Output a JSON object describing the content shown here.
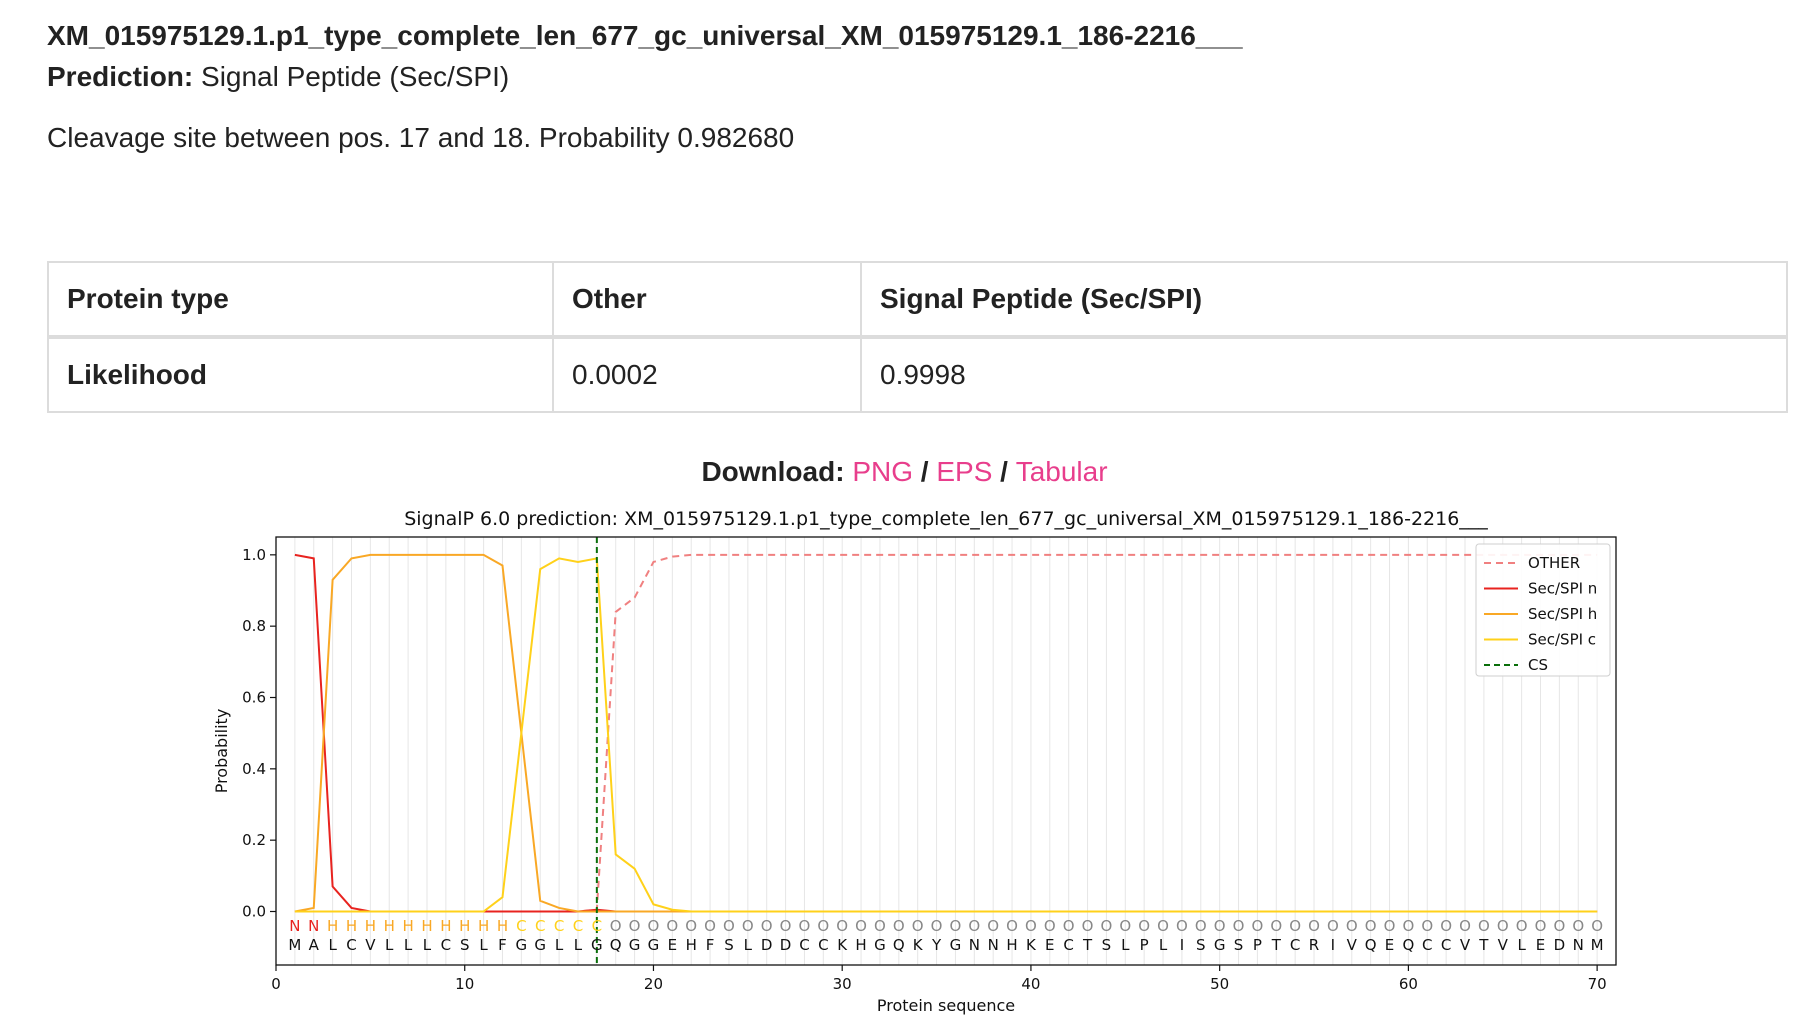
{
  "header": {
    "sequence_name": "XM_015975129.1.p1_type_complete_len_677_gc_universal_XM_015975129.1_186-2216___",
    "prediction_label": "Prediction:",
    "prediction_value": "Signal Peptide (Sec/SPI)",
    "cleavage_text": "Cleavage site between pos. 17 and 18. Probability 0.982680"
  },
  "table": {
    "row1": [
      "Protein type",
      "Other",
      "Signal Peptide (Sec/SPI)"
    ],
    "row2": [
      "Likelihood",
      "0.0002",
      "0.9998"
    ]
  },
  "download": {
    "label": "Download:",
    "links": [
      "PNG",
      "EPS",
      "Tabular"
    ],
    "separator": "/"
  },
  "chart_data": {
    "type": "line",
    "title": "SignalP 6.0 prediction: XM_015975129.1.p1_type_complete_len_677_gc_universal_XM_015975129.1_186-2216___",
    "xlabel": "Protein sequence",
    "ylabel": "Probability",
    "xlim": [
      0,
      71
    ],
    "ylim": [
      -0.15,
      1.05
    ],
    "xticks": [
      0,
      10,
      20,
      30,
      40,
      50,
      60,
      70
    ],
    "yticks": [
      0.0,
      0.2,
      0.4,
      0.6,
      0.8,
      1.0
    ],
    "ytick_labels": [
      "0.0",
      "0.2",
      "0.4",
      "0.6",
      "0.8",
      "1.0"
    ],
    "legend_position": "top-right",
    "sequence": "MALCVLLLCSLFGGLLGQGGEHFSLDDCCKHGQKYGNNHKECTSLPLISGSPTCRIVQEQCCVTVLEDNM",
    "labels": "NNHHHHHHHHHHCCCCCOOOOOOOOOOOOOOOOOOOOOOOOOOOOOOOOOOOOOOOOOOOOOOOOOOOOO",
    "label_colors": {
      "N": "#e8231f",
      "H": "#f9a825",
      "C": "#ffd11a",
      "O": "#888888"
    },
    "x": [
      1,
      2,
      3,
      4,
      5,
      6,
      7,
      8,
      9,
      10,
      11,
      12,
      13,
      14,
      15,
      16,
      17,
      18,
      19,
      20,
      21,
      22,
      23,
      24,
      25,
      26,
      27,
      28,
      29,
      30,
      31,
      32,
      33,
      34,
      35,
      36,
      37,
      38,
      39,
      40,
      41,
      42,
      43,
      44,
      45,
      46,
      47,
      48,
      49,
      50,
      51,
      52,
      53,
      54,
      55,
      56,
      57,
      58,
      59,
      60,
      61,
      62,
      63,
      64,
      65,
      66,
      67,
      68,
      69,
      70
    ],
    "series": [
      {
        "name": "OTHER",
        "color": "#f08080",
        "dash": true,
        "values": [
          0,
          0,
          0,
          0,
          0,
          0,
          0,
          0,
          0,
          0,
          0,
          0,
          0,
          0,
          0,
          0,
          0.005,
          0.84,
          0.88,
          0.98,
          0.995,
          1,
          1,
          1,
          1,
          1,
          1,
          1,
          1,
          1,
          1,
          1,
          1,
          1,
          1,
          1,
          1,
          1,
          1,
          1,
          1,
          1,
          1,
          1,
          1,
          1,
          1,
          1,
          1,
          1,
          1,
          1,
          1,
          1,
          1,
          1,
          1,
          1,
          1,
          1,
          1,
          1,
          1,
          1,
          1,
          1,
          1,
          1,
          1,
          1
        ]
      },
      {
        "name": "Sec/SPI n",
        "color": "#e8231f",
        "dash": false,
        "values": [
          1.0,
          0.99,
          0.07,
          0.01,
          0,
          0,
          0,
          0,
          0,
          0,
          0,
          0,
          0,
          0,
          0,
          0,
          0.005,
          0,
          0,
          0,
          0,
          0,
          0,
          0,
          0,
          0,
          0,
          0,
          0,
          0,
          0,
          0,
          0,
          0,
          0,
          0,
          0,
          0,
          0,
          0,
          0,
          0,
          0,
          0,
          0,
          0,
          0,
          0,
          0,
          0,
          0,
          0,
          0,
          0,
          0,
          0,
          0,
          0,
          0,
          0,
          0,
          0,
          0,
          0,
          0,
          0,
          0,
          0,
          0,
          0
        ]
      },
      {
        "name": "Sec/SPI h",
        "color": "#f9a825",
        "dash": false,
        "values": [
          0,
          0.01,
          0.93,
          0.99,
          1,
          1,
          1,
          1,
          1,
          1,
          1,
          0.97,
          0.5,
          0.03,
          0.01,
          0,
          0,
          0,
          0,
          0,
          0,
          0,
          0,
          0,
          0,
          0,
          0,
          0,
          0,
          0,
          0,
          0,
          0,
          0,
          0,
          0,
          0,
          0,
          0,
          0,
          0,
          0,
          0,
          0,
          0,
          0,
          0,
          0,
          0,
          0,
          0,
          0,
          0,
          0,
          0,
          0,
          0,
          0,
          0,
          0,
          0,
          0,
          0,
          0,
          0,
          0,
          0,
          0,
          0,
          0
        ]
      },
      {
        "name": "Sec/SPI c",
        "color": "#ffd11a",
        "dash": false,
        "values": [
          0,
          0,
          0,
          0,
          0,
          0,
          0,
          0,
          0,
          0,
          0,
          0.04,
          0.5,
          0.96,
          0.99,
          0.98,
          0.99,
          0.16,
          0.12,
          0.02,
          0.005,
          0,
          0,
          0,
          0,
          0,
          0,
          0,
          0,
          0,
          0,
          0,
          0,
          0,
          0,
          0,
          0,
          0,
          0,
          0,
          0,
          0,
          0,
          0,
          0,
          0,
          0,
          0,
          0,
          0,
          0,
          0,
          0,
          0,
          0,
          0,
          0,
          0,
          0,
          0,
          0,
          0,
          0,
          0,
          0,
          0,
          0,
          0,
          0,
          0
        ]
      }
    ],
    "cleavage_site": {
      "name": "CS",
      "x": 17,
      "color": "#0a6e0a"
    }
  }
}
